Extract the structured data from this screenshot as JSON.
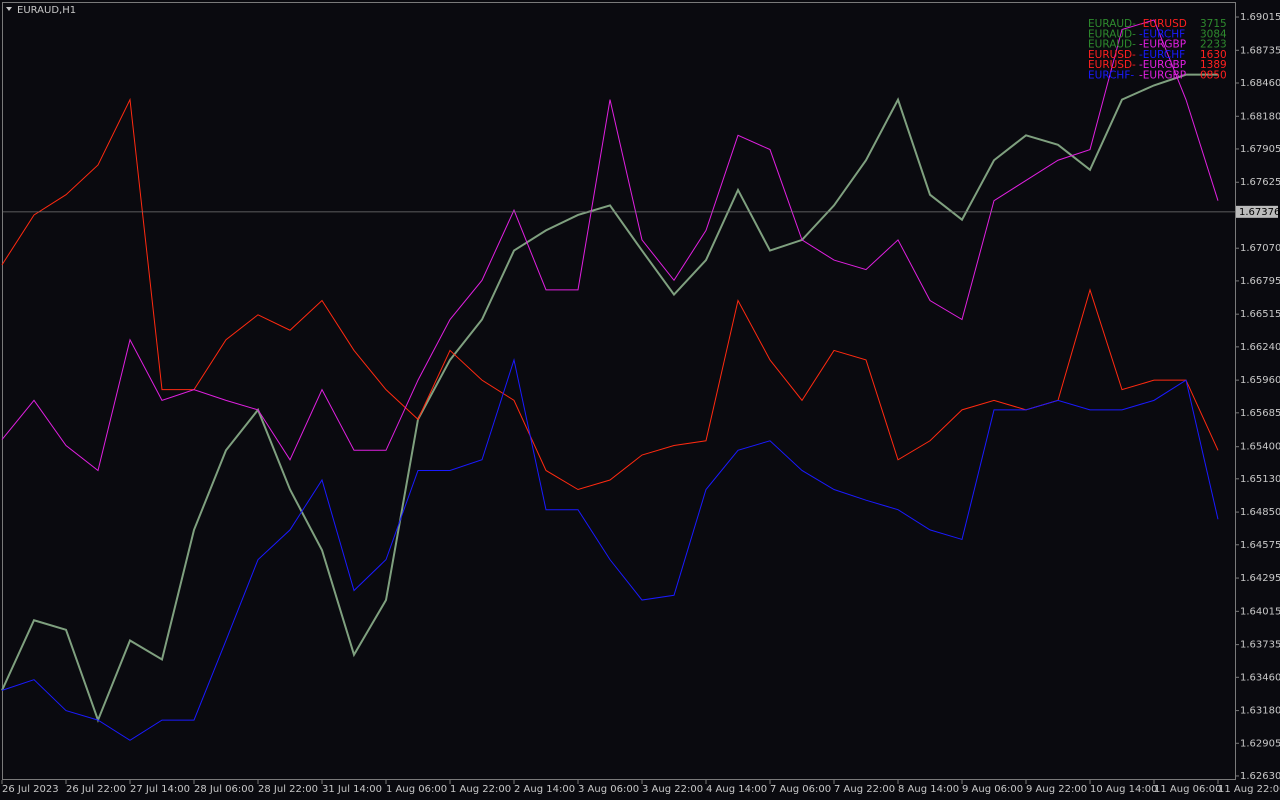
{
  "chart_data": {
    "type": "line",
    "title": "EURAUD,H1",
    "categories": [
      "26 Jul 2023",
      null,
      "26 Jul 22:00",
      null,
      "27 Jul 14:00",
      null,
      "28 Jul 06:00",
      null,
      "28 Jul 22:00",
      null,
      "31 Jul 14:00",
      null,
      "1 Aug 06:00",
      null,
      "1 Aug 22:00",
      null,
      "2 Aug 14:00",
      null,
      "3 Aug 06:00",
      null,
      "3 Aug 22:00",
      null,
      "4 Aug 14:00",
      null,
      "7 Aug 06:00",
      null,
      "7 Aug 22:00",
      null,
      "8 Aug 14:00",
      null,
      "9 Aug 06:00",
      null,
      "9 Aug 22:00",
      null,
      "10 Aug 14:00",
      null,
      "11 Aug 06:00",
      null,
      "11 Aug 22:00"
    ],
    "series": [
      {
        "color": "#7fa07f",
        "values": [
          1.6335,
          1.6394,
          1.6386,
          1.631,
          1.6377,
          1.6361,
          1.647,
          1.6537,
          1.6571,
          1.6504,
          1.6453,
          1.6365,
          1.6411,
          1.6563,
          1.6613,
          1.6647,
          1.6705,
          1.6722,
          1.6735,
          1.6743,
          1.6705,
          1.6668,
          1.6697,
          1.6756,
          1.6705,
          1.6714,
          1.6743,
          1.6781,
          1.6832,
          1.6752,
          1.6731,
          1.6781,
          1.6802,
          1.6794,
          1.6773,
          1.6832,
          1.6844,
          1.6853,
          1.6853
        ]
      },
      {
        "color": "#ff2a10",
        "values": [
          1.6693,
          1.6735,
          1.6752,
          1.6777,
          1.6832,
          1.6588,
          1.6588,
          1.663,
          1.6651,
          1.6638,
          1.6663,
          1.6621,
          1.6588,
          1.6563,
          1.6621,
          1.6596,
          1.6579,
          1.652,
          1.6504,
          1.6512,
          1.6533,
          1.6541,
          1.6545,
          1.6663,
          1.6613,
          1.6579,
          1.6621,
          1.6613,
          1.6529,
          1.6545,
          1.6571,
          1.6579,
          1.6571,
          1.6579,
          1.6672,
          1.6588,
          1.6596,
          1.6596,
          1.6537
        ]
      },
      {
        "color": "#e020e0",
        "values": [
          1.6546,
          1.6579,
          1.6541,
          1.652,
          1.663,
          1.6579,
          1.6588,
          1.6579,
          1.6571,
          1.6529,
          1.6588,
          1.6537,
          1.6537,
          1.6596,
          1.6647,
          1.668,
          1.6739,
          1.6672,
          1.6672,
          1.6832,
          1.6714,
          1.668,
          1.6722,
          1.6802,
          1.679,
          1.6714,
          1.6697,
          1.6689,
          1.6714,
          1.6663,
          1.6647,
          1.6747,
          1.6764,
          1.6781,
          1.679,
          1.6891,
          1.6899,
          1.6832,
          1.6747
        ]
      },
      {
        "color": "#1a1aff",
        "values": [
          1.6335,
          1.6344,
          1.6318,
          1.631,
          1.6293,
          1.631,
          1.631,
          1.6377,
          1.6445,
          1.647,
          1.6512,
          1.6419,
          1.6445,
          1.652,
          1.652,
          1.6529,
          1.6613,
          1.6487,
          1.6487,
          1.6445,
          1.6411,
          1.6415,
          1.6504,
          1.6537,
          1.6545,
          1.652,
          1.6504,
          1.6495,
          1.6487,
          1.647,
          1.6462,
          1.6571,
          1.6571,
          1.6579,
          1.6571,
          1.6571,
          1.6579,
          1.6596,
          1.6479
        ]
      }
    ],
    "ylim": [
      1.62596,
      1.69133
    ],
    "yticks": [
      {
        "value": 1.6263,
        "label": "1.62630"
      },
      1.62905,
      {
        "value": 1.6318,
        "label": "1.63180"
      },
      {
        "value": 1.6346,
        "label": "1.63460"
      },
      1.63735,
      1.64015,
      1.64295,
      1.64575,
      {
        "value": 1.6485,
        "label": "1.64850"
      },
      {
        "value": 1.6513,
        "label": "1.65130"
      },
      {
        "value": 1.654,
        "label": "1.65400"
      },
      1.65685,
      {
        "value": 1.6596,
        "label": "1.65960"
      },
      {
        "value": 1.6624,
        "label": "1.66240"
      },
      1.66515,
      1.66795,
      {
        "value": 1.6707,
        "label": "1.67070"
      },
      1.67625,
      1.67905,
      {
        "value": 1.6818,
        "label": "1.68180"
      },
      {
        "value": 1.6846,
        "label": "1.68460"
      },
      1.68735,
      1.69015
    ],
    "current_price": 1.67376,
    "overlay": [
      {
        "cells": [
          "EURAUD-",
          "-EURUSD",
          "3715"
        ],
        "colors": [
          "#2e8b2e",
          "#ff2020",
          "#2e8b2e"
        ]
      },
      {
        "cells": [
          "EURAUD-",
          "-EURCHF",
          "3084"
        ],
        "colors": [
          "#2e8b2e",
          "#1a1aff",
          "#2e8b2e"
        ]
      },
      {
        "cells": [
          "EURAUD-",
          "-EURGBP",
          "2233"
        ],
        "colors": [
          "#2e8b2e",
          "#e020e0",
          "#2e8b2e"
        ]
      },
      {
        "cells": [
          "EURUSD-",
          "-EURCHF",
          "1630"
        ],
        "colors": [
          "#ff2020",
          "#1a1aff",
          "#ff2020"
        ]
      },
      {
        "cells": [
          "EURUSD-",
          "-EURGBP",
          "1389"
        ],
        "colors": [
          "#ff2020",
          "#e020e0",
          "#ff2020"
        ]
      },
      {
        "cells": [
          "EURCHF-",
          "-EURGBP",
          "0850"
        ],
        "colors": [
          "#1a1aff",
          "#e020e0",
          "#ff2020"
        ]
      }
    ]
  }
}
